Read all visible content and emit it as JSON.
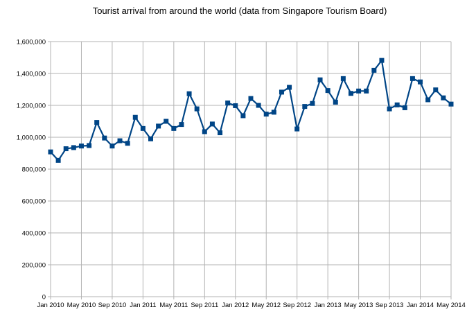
{
  "chart_data": {
    "type": "line",
    "title": "Tourist arrival from around the world (data from Singapore Tourism Board)",
    "xlabel": "",
    "ylabel": "",
    "ylim": [
      0,
      1600000
    ],
    "y_ticks": [
      "0",
      "200,000",
      "400,000",
      "600,000",
      "800,000",
      "1,000,000",
      "1,200,000",
      "1,400,000",
      "1,600,000"
    ],
    "x_tick_labels": [
      "Jan 2010",
      "May 2010",
      "Sep 2010",
      "Jan 2011",
      "May 2011",
      "Sep 2011",
      "Jan 2012",
      "May 2012",
      "Sep 2012",
      "Jan 2013",
      "May 2013",
      "Sep 2013",
      "Jan 2014",
      "May 2014"
    ],
    "grid": true,
    "legend": "none",
    "colors": {
      "line": "#004586",
      "marker": "#004586",
      "grid": "#b3b3b3"
    },
    "x": [
      "Jan 2010",
      "Feb 2010",
      "Mar 2010",
      "Apr 2010",
      "May 2010",
      "Jun 2010",
      "Jul 2010",
      "Aug 2010",
      "Sep 2010",
      "Oct 2010",
      "Nov 2010",
      "Dec 2010",
      "Jan 2011",
      "Feb 2011",
      "Mar 2011",
      "Apr 2011",
      "May 2011",
      "Jun 2011",
      "Jul 2011",
      "Aug 2011",
      "Sep 2011",
      "Oct 2011",
      "Nov 2011",
      "Dec 2011",
      "Jan 2012",
      "Feb 2012",
      "Mar 2012",
      "Apr 2012",
      "May 2012",
      "Jun 2012",
      "Jul 2012",
      "Aug 2012",
      "Sep 2012",
      "Oct 2012",
      "Nov 2012",
      "Dec 2012",
      "Jan 2013",
      "Feb 2013",
      "Mar 2013",
      "Apr 2013",
      "May 2013",
      "Jun 2013",
      "Jul 2013",
      "Aug 2013",
      "Sep 2013",
      "Oct 2013",
      "Nov 2013",
      "Dec 2013",
      "Jan 2014",
      "Feb 2014",
      "Mar 2014",
      "Apr 2014",
      "May 2014"
    ],
    "series": [
      {
        "values": [
          908000,
          855000,
          928000,
          935000,
          945000,
          948000,
          1093000,
          995000,
          945000,
          978000,
          962000,
          1125000,
          1055000,
          990000,
          1070000,
          1100000,
          1055000,
          1080000,
          1273000,
          1178000,
          1035000,
          1083000,
          1028000,
          1215000,
          1198000,
          1135000,
          1243000,
          1200000,
          1145000,
          1157000,
          1283000,
          1313000,
          1052000,
          1193000,
          1212000,
          1360000,
          1293000,
          1220000,
          1368000,
          1275000,
          1290000,
          1290000,
          1420000,
          1482000,
          1178000,
          1203000,
          1185000,
          1368000,
          1347000,
          1235000,
          1297000,
          1247000,
          1208000
        ]
      }
    ]
  }
}
